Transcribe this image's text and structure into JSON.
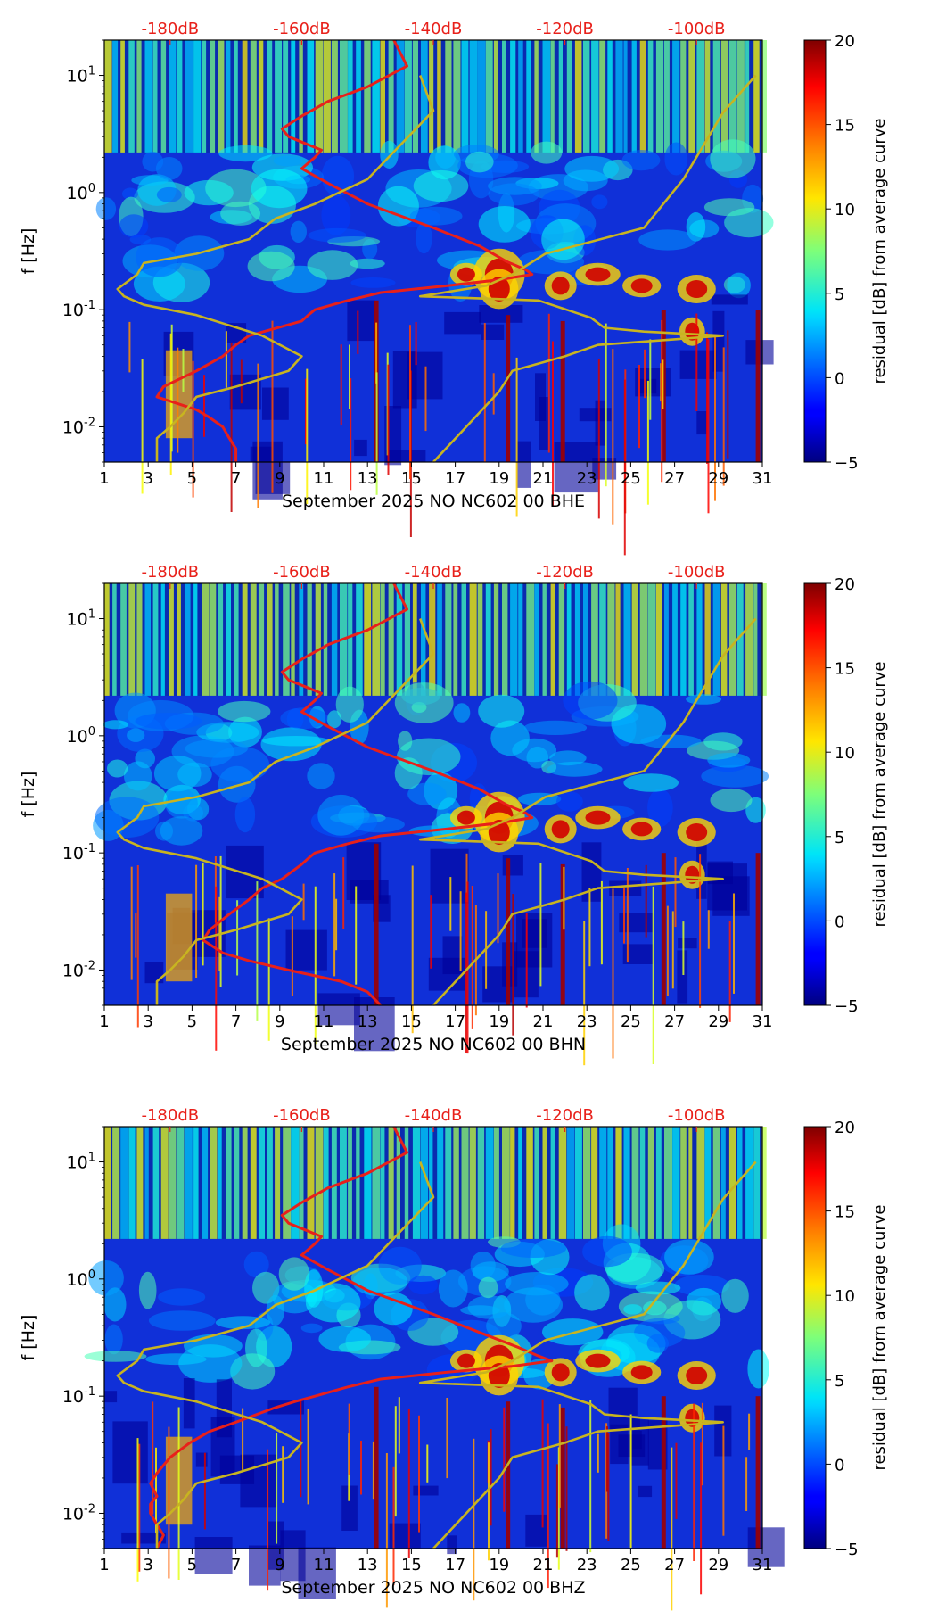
{
  "chart_data": [
    {
      "type": "heatmap",
      "title": "",
      "xlabel": "September 2025 NO NC602 00 BHE",
      "ylabel": "f [Hz]",
      "xlim": [
        1,
        31
      ],
      "ylim": [
        0.005,
        20
      ],
      "yscale": "log",
      "x_ticks": [
        "1",
        "3",
        "5",
        "7",
        "9",
        "11",
        "13",
        "15",
        "17",
        "19",
        "21",
        "23",
        "25",
        "27",
        "29",
        "31"
      ],
      "y_ticks": [
        "10^-2",
        "10^-1",
        "10^0",
        "10^1"
      ],
      "top_ticks": [
        "-180dB",
        "-160dB",
        "-140dB",
        "-120dB",
        "-100dB"
      ],
      "top_axis_range_db": [
        -190,
        -90
      ],
      "colorbar": {
        "label": "residual [dB] from average curve",
        "range": [
          -5,
          20
        ],
        "ticks": [
          "-5",
          "0",
          "5",
          "10",
          "15",
          "20"
        ]
      },
      "series": [
        {
          "color": "#e8201a",
          "x_db": [
            -146,
            -144,
            -150,
            -156,
            -160,
            -163,
            -162,
            -160,
            -157,
            -158,
            -160,
            -156,
            -150,
            -140,
            -133,
            -129,
            -126,
            -125,
            -130,
            -138,
            -148,
            -153,
            -158,
            -159,
            -160,
            -168,
            -170,
            -172,
            -176,
            -181,
            -182,
            -176,
            -174,
            -172,
            -171,
            -170,
            -170
          ],
          "freq_hz": [
            20,
            12,
            8,
            6,
            4.5,
            3.5,
            3.0,
            2.7,
            2.3,
            2.0,
            1.6,
            1.2,
            0.8,
            0.5,
            0.35,
            0.26,
            0.22,
            0.2,
            0.18,
            0.16,
            0.14,
            0.12,
            0.1,
            0.09,
            0.08,
            0.06,
            0.05,
            0.04,
            0.03,
            0.022,
            0.018,
            0.014,
            0.012,
            0.01,
            0.008,
            0.0065,
            0.005
          ]
        },
        {
          "color": "#c8b420",
          "x_db": [
            -182,
            -182,
            -180,
            -178,
            -176,
            -170,
            -162,
            -160,
            -166,
            -176,
            -184,
            -187,
            -188,
            -185,
            -184,
            -176,
            -168,
            -164,
            -158,
            -150,
            -140,
            -142,
            -140,
            -135,
            -130,
            -128,
            -120,
            -115,
            -105,
            -96,
            -108,
            -114,
            -116,
            -124,
            -142,
            -132,
            -128,
            -123,
            -108,
            -102,
            -96,
            -91
          ],
          "freq_hz": [
            0.005,
            0.008,
            0.01,
            0.013,
            0.018,
            0.022,
            0.03,
            0.04,
            0.06,
            0.09,
            0.11,
            0.13,
            0.15,
            0.2,
            0.25,
            0.3,
            0.4,
            0.6,
            0.8,
            1.3,
            5,
            10,
            0.005,
            0.01,
            0.02,
            0.03,
            0.04,
            0.05,
            0.055,
            0.06,
            0.065,
            0.07,
            0.085,
            0.12,
            0.13,
            0.16,
            0.2,
            0.3,
            0.5,
            1.3,
            4.8,
            10
          ]
        }
      ]
    },
    {
      "type": "heatmap",
      "title": "",
      "xlabel": "September 2025 NO NC602 00 BHN",
      "ylabel": "f [Hz]",
      "xlim": [
        1,
        31
      ],
      "ylim": [
        0.005,
        20
      ],
      "yscale": "log",
      "x_ticks": [
        "1",
        "3",
        "5",
        "7",
        "9",
        "11",
        "13",
        "15",
        "17",
        "19",
        "21",
        "23",
        "25",
        "27",
        "29",
        "31"
      ],
      "y_ticks": [
        "10^-2",
        "10^-1",
        "10^0",
        "10^1"
      ],
      "top_ticks": [
        "-180dB",
        "-160dB",
        "-140dB",
        "-120dB",
        "-100dB"
      ],
      "top_axis_range_db": [
        -190,
        -90
      ],
      "colorbar": {
        "label": "residual [dB] from average curve",
        "range": [
          -5,
          20
        ],
        "ticks": [
          "-5",
          "0",
          "5",
          "10",
          "15",
          "20"
        ]
      },
      "series": [
        {
          "color": "#e8201a",
          "x_db": [
            -146,
            -144,
            -150,
            -156,
            -160,
            -163,
            -162,
            -160,
            -157,
            -158,
            -160,
            -156,
            -150,
            -140,
            -133,
            -129,
            -126,
            -125,
            -130,
            -138,
            -148,
            -153,
            -158,
            -159,
            -160,
            -163,
            -166,
            -168,
            -171,
            -174,
            -175,
            -172,
            -168,
            -162,
            -154,
            -150,
            -148
          ],
          "freq_hz": [
            20,
            12,
            8,
            6,
            4.5,
            3.5,
            3.0,
            2.7,
            2.3,
            2.0,
            1.6,
            1.2,
            0.8,
            0.5,
            0.35,
            0.26,
            0.22,
            0.2,
            0.18,
            0.16,
            0.14,
            0.12,
            0.1,
            0.09,
            0.08,
            0.06,
            0.05,
            0.04,
            0.03,
            0.022,
            0.018,
            0.014,
            0.012,
            0.01,
            0.008,
            0.0065,
            0.005
          ]
        },
        {
          "color": "#c8b420",
          "x_db": [
            -182,
            -182,
            -180,
            -178,
            -176,
            -170,
            -162,
            -160,
            -166,
            -176,
            -184,
            -187,
            -188,
            -185,
            -184,
            -176,
            -168,
            -164,
            -158,
            -150,
            -140,
            -142,
            -140,
            -135,
            -130,
            -128,
            -120,
            -115,
            -105,
            -96,
            -108,
            -114,
            -116,
            -124,
            -142,
            -132,
            -128,
            -123,
            -108,
            -102,
            -96,
            -91
          ],
          "freq_hz": [
            0.005,
            0.008,
            0.01,
            0.013,
            0.018,
            0.022,
            0.03,
            0.04,
            0.06,
            0.09,
            0.11,
            0.13,
            0.15,
            0.2,
            0.25,
            0.3,
            0.4,
            0.6,
            0.8,
            1.3,
            5,
            10,
            0.005,
            0.01,
            0.02,
            0.03,
            0.04,
            0.05,
            0.055,
            0.06,
            0.065,
            0.07,
            0.085,
            0.12,
            0.13,
            0.16,
            0.2,
            0.3,
            0.5,
            1.3,
            4.8,
            10
          ]
        }
      ]
    },
    {
      "type": "heatmap",
      "title": "",
      "xlabel": "September 2025 NO NC602 00 BHZ",
      "ylabel": "f [Hz]",
      "xlim": [
        1,
        31
      ],
      "ylim": [
        0.005,
        20
      ],
      "yscale": "log",
      "x_ticks": [
        "1",
        "3",
        "5",
        "7",
        "9",
        "11",
        "13",
        "15",
        "17",
        "19",
        "21",
        "23",
        "25",
        "27",
        "29",
        "31"
      ],
      "y_ticks": [
        "10^-2",
        "10^-1",
        "10^0",
        "10^1"
      ],
      "top_ticks": [
        "-180dB",
        "-160dB",
        "-140dB",
        "-120dB",
        "-100dB"
      ],
      "top_axis_range_db": [
        -190,
        -90
      ],
      "colorbar": {
        "label": "residual [dB] from average curve",
        "range": [
          -5,
          20
        ],
        "ticks": [
          "-5",
          "0",
          "5",
          "10",
          "15",
          "20"
        ]
      },
      "series": [
        {
          "color": "#e8201a",
          "x_db": [
            -146,
            -144,
            -150,
            -156,
            -160,
            -163,
            -162,
            -160,
            -157,
            -158,
            -160,
            -156,
            -150,
            -140,
            -133,
            -127,
            -124,
            -122,
            -128,
            -138,
            -148,
            -153,
            -158,
            -161,
            -164,
            -170,
            -174,
            -177,
            -180,
            -182,
            -183,
            -182,
            -183,
            -183,
            -182,
            -181,
            -182
          ],
          "freq_hz": [
            20,
            12,
            8,
            6,
            4.5,
            3.5,
            3.0,
            2.7,
            2.3,
            2.0,
            1.6,
            1.2,
            0.8,
            0.5,
            0.35,
            0.26,
            0.22,
            0.2,
            0.18,
            0.16,
            0.14,
            0.12,
            0.1,
            0.09,
            0.08,
            0.06,
            0.05,
            0.04,
            0.03,
            0.022,
            0.018,
            0.014,
            0.012,
            0.01,
            0.008,
            0.0065,
            0.005
          ]
        },
        {
          "color": "#c8b420",
          "x_db": [
            -182,
            -182,
            -180,
            -178,
            -176,
            -170,
            -162,
            -160,
            -166,
            -176,
            -184,
            -187,
            -188,
            -185,
            -184,
            -176,
            -168,
            -164,
            -158,
            -150,
            -140,
            -142,
            -140,
            -135,
            -130,
            -128,
            -120,
            -115,
            -105,
            -96,
            -108,
            -114,
            -116,
            -124,
            -142,
            -132,
            -128,
            -123,
            -108,
            -102,
            -96,
            -91
          ],
          "freq_hz": [
            0.005,
            0.008,
            0.01,
            0.013,
            0.018,
            0.022,
            0.03,
            0.04,
            0.06,
            0.09,
            0.11,
            0.13,
            0.15,
            0.2,
            0.25,
            0.3,
            0.4,
            0.6,
            0.8,
            1.3,
            5,
            10,
            0.005,
            0.01,
            0.02,
            0.03,
            0.04,
            0.05,
            0.055,
            0.06,
            0.065,
            0.07,
            0.085,
            0.12,
            0.13,
            0.16,
            0.2,
            0.3,
            0.5,
            1.3,
            4.8,
            10
          ]
        }
      ]
    }
  ]
}
